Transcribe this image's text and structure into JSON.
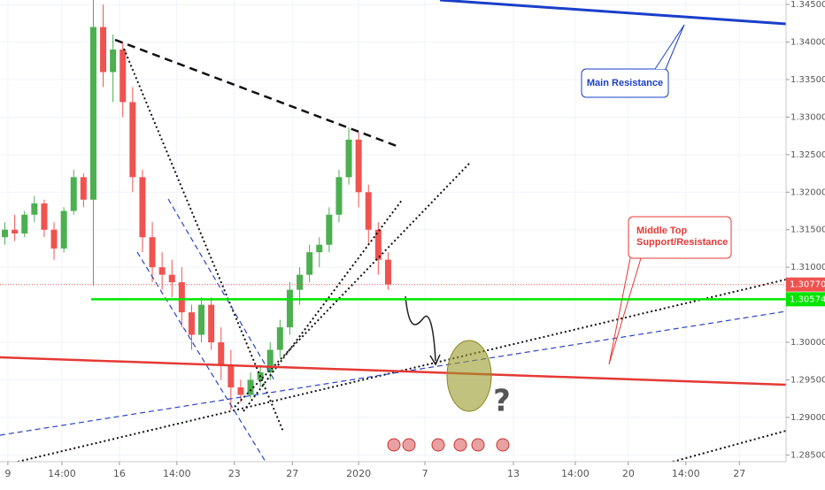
{
  "chart_data": {
    "type": "candlestick",
    "xlim": [
      0,
      160
    ],
    "ylim": [
      1.2841,
      1.3456
    ],
    "grid": true,
    "up_color": "#4caf50",
    "down_color": "#ef5350",
    "yticks": [
      {
        "value": 1.345,
        "label": "1.34500"
      },
      {
        "value": 1.34,
        "label": "1.34000"
      },
      {
        "value": 1.335,
        "label": "1.33500"
      },
      {
        "value": 1.33,
        "label": "1.33000"
      },
      {
        "value": 1.325,
        "label": "1.32500"
      },
      {
        "value": 1.32,
        "label": "1.32000"
      },
      {
        "value": 1.315,
        "label": "1.31500"
      },
      {
        "value": 1.31,
        "label": "1.31000"
      },
      {
        "value": 1.3,
        "label": "1.30000"
      },
      {
        "value": 1.295,
        "label": "1.29500"
      },
      {
        "value": 1.29,
        "label": "1.29000"
      },
      {
        "value": 1.285,
        "label": "1.28500"
      }
    ],
    "xticks": [
      {
        "value": 1.6,
        "label": "9"
      },
      {
        "value": 12.6,
        "label": "14:00"
      },
      {
        "value": 24.3,
        "label": "16"
      },
      {
        "value": 36,
        "label": "14:00"
      },
      {
        "value": 47.7,
        "label": "23"
      },
      {
        "value": 59.5,
        "label": "27"
      },
      {
        "value": 73,
        "label": "2020"
      },
      {
        "value": 86.5,
        "label": "7"
      },
      {
        "value": 104.5,
        "label": "13"
      },
      {
        "value": 117.1,
        "label": "14:00"
      },
      {
        "value": 127.9,
        "label": "20"
      },
      {
        "value": 139.6,
        "label": "14:00"
      },
      {
        "value": 150.5,
        "label": "27"
      }
    ],
    "candles": {
      "x": [
        1,
        3,
        5,
        7,
        9,
        11,
        13,
        15,
        17,
        19,
        21,
        23,
        25,
        27,
        29,
        31,
        33,
        35,
        37,
        39,
        41,
        43,
        45,
        47,
        49,
        51,
        53,
        55,
        57,
        59,
        61,
        63,
        65,
        67,
        69,
        71,
        73,
        75,
        77,
        79
      ],
      "open": [
        1.314,
        1.315,
        1.3145,
        1.317,
        1.3185,
        1.315,
        1.3125,
        1.3175,
        1.322,
        1.319,
        1.342,
        1.336,
        1.339,
        1.332,
        1.322,
        1.314,
        1.31,
        1.309,
        1.308,
        1.304,
        1.301,
        1.305,
        1.3,
        1.297,
        1.294,
        1.293,
        1.295,
        1.296,
        1.299,
        1.302,
        1.307,
        1.309,
        1.312,
        1.313,
        1.317,
        1.322,
        1.327,
        1.32,
        1.315,
        1.311
      ],
      "high": [
        1.316,
        1.317,
        1.3175,
        1.3195,
        1.319,
        1.316,
        1.318,
        1.323,
        1.3225,
        1.3456,
        1.345,
        1.341,
        1.34,
        1.334,
        1.323,
        1.316,
        1.312,
        1.311,
        1.31,
        1.305,
        1.306,
        1.306,
        1.302,
        1.299,
        1.295,
        1.296,
        1.297,
        1.3,
        1.303,
        1.308,
        1.31,
        1.313,
        1.314,
        1.318,
        1.323,
        1.3286,
        1.328,
        1.321,
        1.316,
        1.312
      ],
      "low": [
        1.313,
        1.3135,
        1.314,
        1.316,
        1.314,
        1.311,
        1.312,
        1.317,
        1.318,
        1.3075,
        1.334,
        1.332,
        1.33,
        1.32,
        1.312,
        1.308,
        1.307,
        1.306,
        1.302,
        1.299,
        1.3,
        1.299,
        1.295,
        1.291,
        1.292,
        1.2925,
        1.294,
        1.295,
        1.298,
        1.301,
        1.305,
        1.308,
        1.31,
        1.312,
        1.316,
        1.321,
        1.318,
        1.313,
        1.309,
        1.307
      ],
      "close": [
        1.315,
        1.3145,
        1.317,
        1.3185,
        1.315,
        1.3125,
        1.3175,
        1.322,
        1.319,
        1.342,
        1.336,
        1.339,
        1.332,
        1.322,
        1.314,
        1.31,
        1.309,
        1.308,
        1.304,
        1.301,
        1.305,
        1.3,
        1.297,
        1.294,
        1.293,
        1.295,
        1.296,
        1.299,
        1.302,
        1.307,
        1.309,
        1.312,
        1.313,
        1.317,
        1.322,
        1.327,
        1.32,
        1.315,
        1.311,
        1.3077
      ]
    },
    "price_lines": [
      {
        "value": 1.3077,
        "label": "1.30770",
        "color": "#ef5350"
      },
      {
        "value": 1.30574,
        "label": "1.30574",
        "color": "#00e600"
      }
    ],
    "annotations": {
      "main_resistance": "Main Resistance",
      "middle": [
        "Middle Top",
        "Support/Resistance"
      ],
      "question": "?"
    }
  }
}
